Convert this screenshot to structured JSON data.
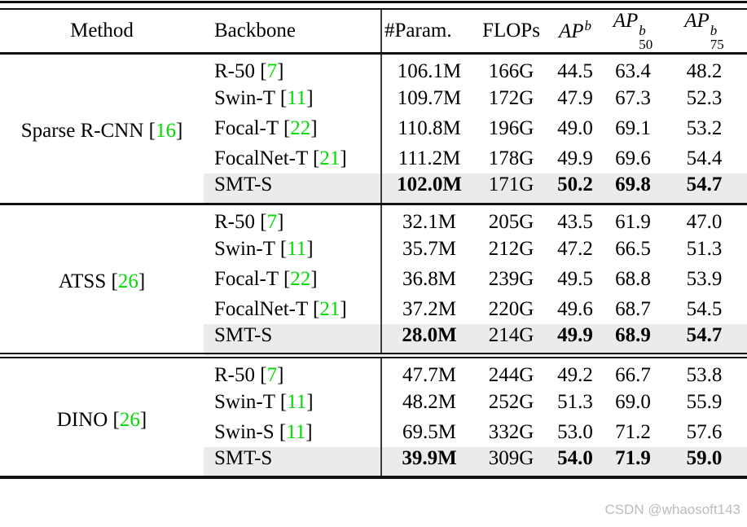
{
  "colors": {
    "ref_green": "#00dc00",
    "highlight_row": "#ebebeb",
    "rule_black": "#111111",
    "watermark_gray": "#bcbcbc"
  },
  "punct": {
    "lbracket": "[",
    "rbracket": "]"
  },
  "watermark": "CSDN @whaosoft143",
  "header": {
    "method": "Method",
    "backbone": "Backbone",
    "param": "#Param.",
    "flops": "FLOPs",
    "apb": {
      "base": "AP",
      "sup": "b"
    },
    "apb50": {
      "base": "AP",
      "sup": "b",
      "sub": "50"
    },
    "apb75": {
      "base": "AP",
      "sup": "b",
      "sub": "75"
    }
  },
  "groups": [
    {
      "method": {
        "name": "Sparse R-CNN",
        "ref": "16"
      },
      "rows": [
        {
          "backbone": {
            "name": "R-50",
            "ref": "7"
          },
          "param": "106.1M",
          "flops": "166G",
          "apb": "44.5",
          "apb50": "63.4",
          "apb75": "48.2",
          "highlight": false
        },
        {
          "backbone": {
            "name": "Swin-T",
            "ref": "11"
          },
          "param": "109.7M",
          "flops": "172G",
          "apb": "47.9",
          "apb50": "67.3",
          "apb75": "52.3",
          "highlight": false
        },
        {
          "backbone": {
            "name": "Focal-T",
            "ref": "22"
          },
          "param": "110.8M",
          "flops": "196G",
          "apb": "49.0",
          "apb50": "69.1",
          "apb75": "53.2",
          "highlight": false
        },
        {
          "backbone": {
            "name": "FocalNet-T",
            "ref": "21"
          },
          "param": "111.2M",
          "flops": "178G",
          "apb": "49.9",
          "apb50": "69.6",
          "apb75": "54.4",
          "highlight": false
        },
        {
          "backbone": {
            "name": "SMT-S"
          },
          "param": "102.0M",
          "flops": "171G",
          "apb": "50.2",
          "apb50": "69.8",
          "apb75": "54.7",
          "highlight": true
        }
      ]
    },
    {
      "method": {
        "name": "ATSS",
        "ref": "26"
      },
      "rows": [
        {
          "backbone": {
            "name": "R-50",
            "ref": "7"
          },
          "param": "32.1M",
          "flops": "205G",
          "apb": "43.5",
          "apb50": "61.9",
          "apb75": "47.0",
          "highlight": false
        },
        {
          "backbone": {
            "name": "Swin-T",
            "ref": "11"
          },
          "param": "35.7M",
          "flops": "212G",
          "apb": "47.2",
          "apb50": "66.5",
          "apb75": "51.3",
          "highlight": false
        },
        {
          "backbone": {
            "name": "Focal-T",
            "ref": "22"
          },
          "param": "36.8M",
          "flops": "239G",
          "apb": "49.5",
          "apb50": "68.8",
          "apb75": "53.9",
          "highlight": false
        },
        {
          "backbone": {
            "name": "FocalNet-T",
            "ref": "21"
          },
          "param": "37.2M",
          "flops": "220G",
          "apb": "49.6",
          "apb50": "68.7",
          "apb75": "54.5",
          "highlight": false
        },
        {
          "backbone": {
            "name": "SMT-S"
          },
          "param": "28.0M",
          "flops": "214G",
          "apb": "49.9",
          "apb50": "68.9",
          "apb75": "54.7",
          "highlight": true
        }
      ]
    },
    {
      "method": {
        "name": "DINO",
        "ref": "26"
      },
      "rows": [
        {
          "backbone": {
            "name": "R-50",
            "ref": "7"
          },
          "param": "47.7M",
          "flops": "244G",
          "apb": "49.2",
          "apb50": "66.7",
          "apb75": "53.8",
          "highlight": false
        },
        {
          "backbone": {
            "name": "Swin-T",
            "ref": "11"
          },
          "param": "48.2M",
          "flops": "252G",
          "apb": "51.3",
          "apb50": "69.0",
          "apb75": "55.9",
          "highlight": false
        },
        {
          "backbone": {
            "name": "Swin-S",
            "ref": "11"
          },
          "param": "69.5M",
          "flops": "332G",
          "apb": "53.0",
          "apb50": "71.2",
          "apb75": "57.6",
          "highlight": false
        },
        {
          "backbone": {
            "name": "SMT-S"
          },
          "param": "39.9M",
          "flops": "309G",
          "apb": "54.0",
          "apb50": "71.9",
          "apb75": "59.0",
          "highlight": true
        }
      ]
    }
  ]
}
